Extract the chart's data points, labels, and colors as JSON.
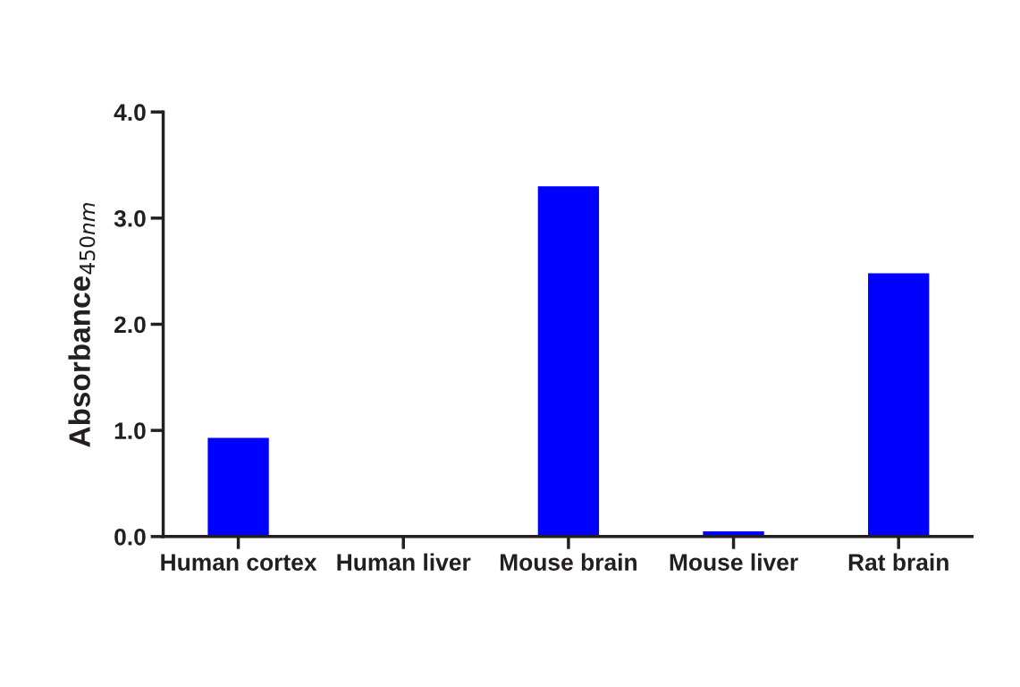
{
  "chart_data": {
    "type": "bar",
    "ylabel": "Absorbance$_{450nm}$",
    "categories": [
      "Human cortex",
      "Human liver",
      "Mouse brain",
      "Mouse liver",
      "Rat brain"
    ],
    "values": [
      0.93,
      null,
      3.3,
      0.05,
      2.48
    ],
    "color": "#0000ff",
    "ylim": [
      0,
      4
    ],
    "yticks": [
      {
        "value": 0,
        "label": "0.0"
      },
      {
        "value": 1,
        "label": "1.0"
      },
      {
        "value": 2,
        "label": "2.0"
      },
      {
        "value": 3,
        "label": "3.0"
      },
      {
        "value": 4,
        "label": "4.0"
      }
    ],
    "grid": false,
    "legend": false
  }
}
